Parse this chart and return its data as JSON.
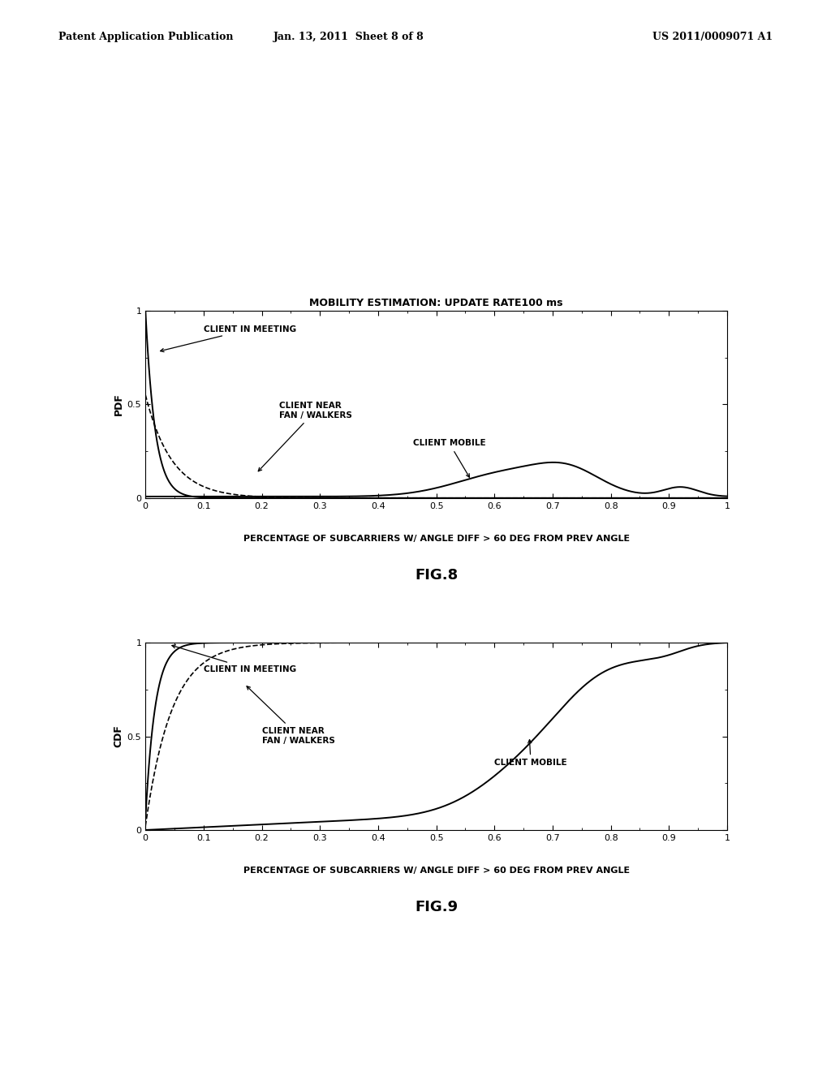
{
  "header_left": "Patent Application Publication",
  "header_center": "Jan. 13, 2011  Sheet 8 of 8",
  "header_right": "US 2011/0009071 A1",
  "fig8_title": "MOBILITY ESTIMATION: UPDATE RATE100 ms",
  "fig8_xlabel": "PERCENTAGE OF SUBCARRIERS W/ ANGLE DIFF > 60 DEG FROM PREV ANGLE",
  "fig8_ylabel": "PDF",
  "fig8_label": "FIG.8",
  "fig9_xlabel": "PERCENTAGE OF SUBCARRIERS W/ ANGLE DIFF > 60 DEG FROM PREV ANGLE",
  "fig9_ylabel": "CDF",
  "fig9_label": "FIG.9",
  "label_meeting": "CLIENT IN MEETING",
  "label_fan": "CLIENT NEAR\nFAN / WALKERS",
  "label_mobile": "CLIENT MOBILE",
  "bg_color": "#ffffff",
  "line_color": "#000000"
}
